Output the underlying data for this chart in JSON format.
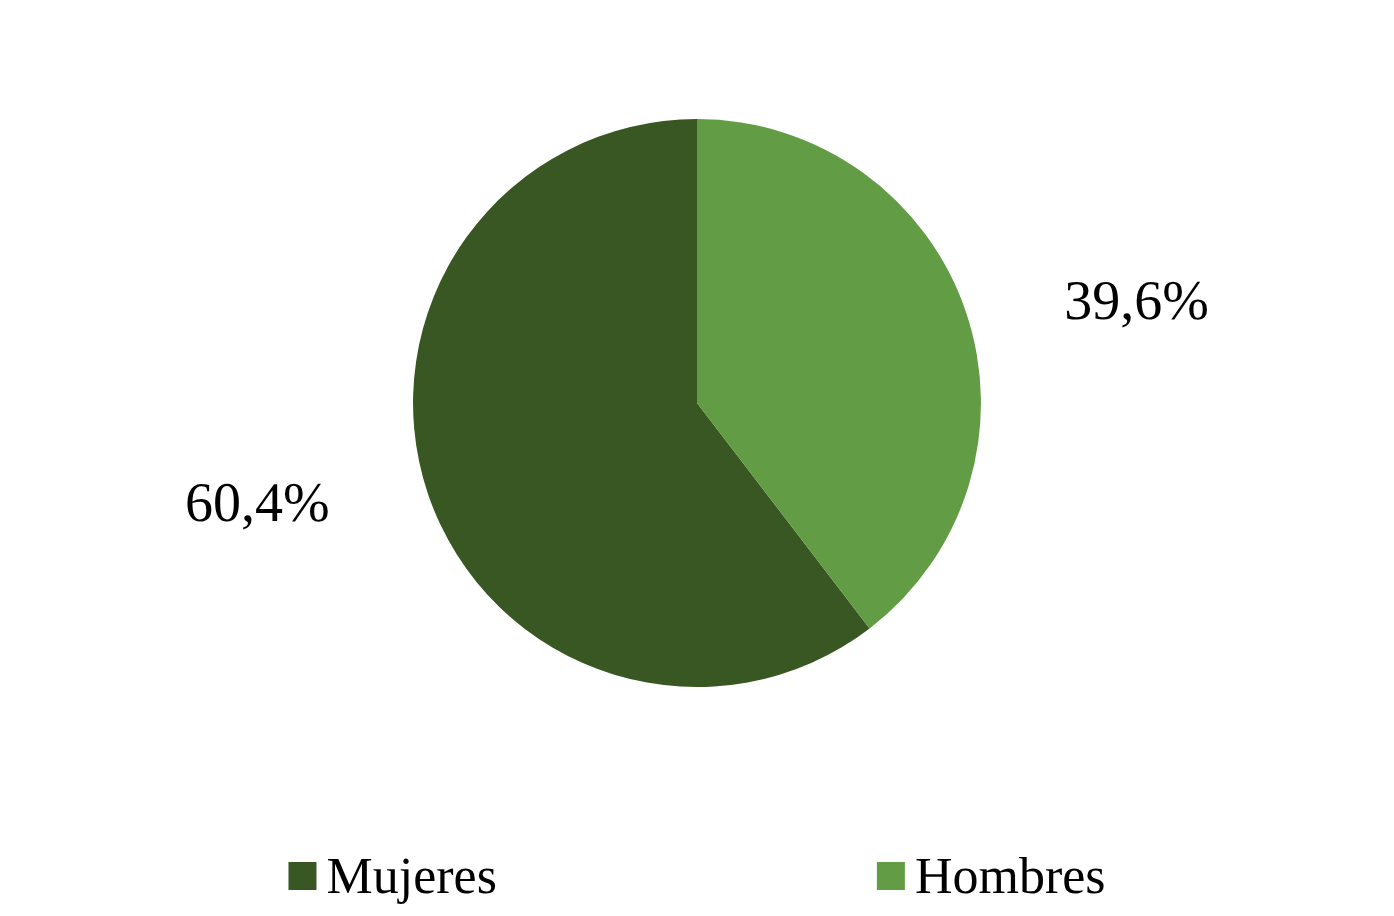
{
  "chart_data": {
    "type": "pie",
    "categories": [
      "Mujeres",
      "Hombres"
    ],
    "values": [
      60.4,
      39.6
    ],
    "colors": [
      "#385723",
      "#629c44"
    ],
    "value_labels": [
      "60,4%",
      "39,6%"
    ],
    "legend": "bottom"
  }
}
